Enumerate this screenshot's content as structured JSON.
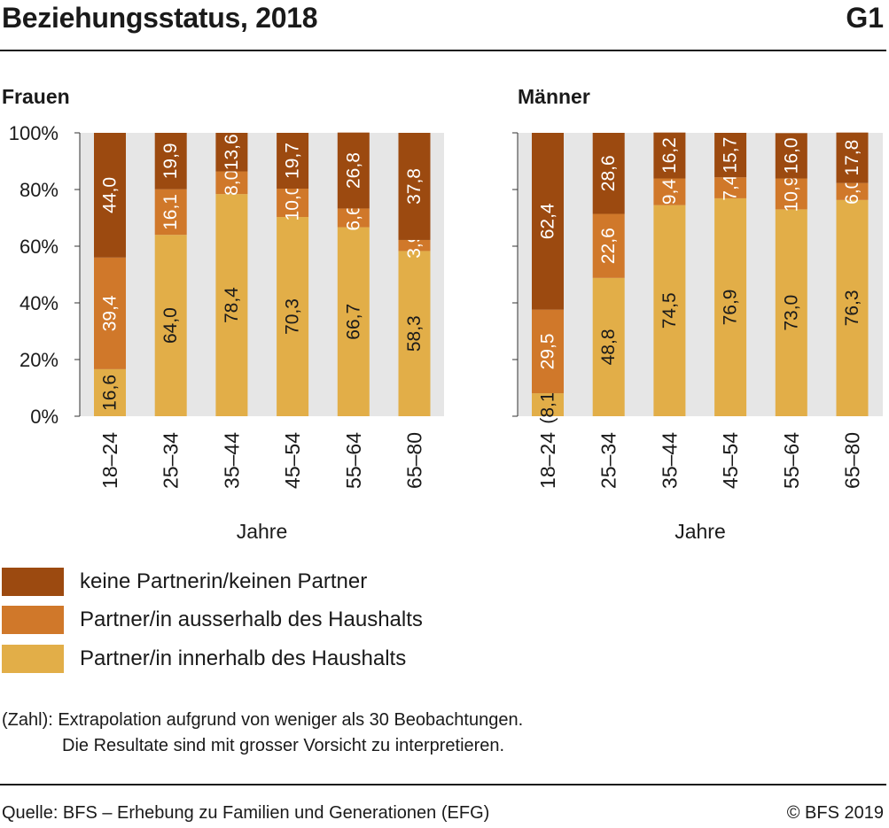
{
  "header": {
    "title": "Beziehungsstatus, 2018",
    "figure_no": "G1"
  },
  "colors": {
    "keine": "#9c4a10",
    "ausserhalb": "#d0782a",
    "innerhalb": "#e2ae48",
    "plot_bg": "#e6e6e6"
  },
  "legend": [
    {
      "label": "keine Partnerin/keinen Partner",
      "color": "#9c4a10"
    },
    {
      "label": "Partner/in ausserhalb des Haushalts",
      "color": "#d0782a"
    },
    {
      "label": "Partner/in innerhalb des Haushalts",
      "color": "#e2ae48"
    }
  ],
  "footnote": {
    "line1": "(Zahl): Extrapolation aufgrund von weniger als 30 Beobachtungen.",
    "line2": "Die Resultate sind mit grosser Vorsicht zu interpretieren."
  },
  "source": "Quelle: BFS – Erhebung zu Familien und Generationen (EFG)",
  "copyright": "© BFS 2019",
  "chart_data": [
    {
      "type": "bar",
      "stacked": true,
      "title": "Frauen",
      "xlabel": "Jahre",
      "ylabel": "",
      "ylim": [
        0,
        100
      ],
      "yticks": [
        "0%",
        "20%",
        "40%",
        "60%",
        "80%",
        "100%"
      ],
      "categories": [
        "18–24",
        "25–34",
        "35–44",
        "45–54",
        "55–64",
        "65–80"
      ],
      "series": [
        {
          "name": "Partner/in innerhalb des Haushalts",
          "values": [
            16.6,
            64.0,
            78.4,
            70.3,
            66.7,
            58.3
          ],
          "labels": [
            "16,6",
            "64,0",
            "78,4",
            "70,3",
            "66,7",
            "58,3"
          ]
        },
        {
          "name": "Partner/in ausserhalb des Haushalts",
          "values": [
            39.4,
            16.1,
            8.0,
            10.0,
            6.6,
            3.9
          ],
          "labels": [
            "39,4",
            "16,1",
            "8,0",
            "10,0",
            "6,6",
            "3,9"
          ]
        },
        {
          "name": "keine Partnerin/keinen Partner",
          "values": [
            44.0,
            19.9,
            13.6,
            19.7,
            26.8,
            37.8
          ],
          "labels": [
            "44,0",
            "19,9",
            "13,6",
            "19,7",
            "26,8",
            "37,8"
          ]
        }
      ]
    },
    {
      "type": "bar",
      "stacked": true,
      "title": "Männer",
      "xlabel": "Jahre",
      "ylabel": "",
      "ylim": [
        0,
        100
      ],
      "categories": [
        "18–24",
        "25–34",
        "35–44",
        "45–54",
        "55–64",
        "65–80"
      ],
      "series": [
        {
          "name": "Partner/in innerhalb des Haushalts",
          "values": [
            8.1,
            48.8,
            74.5,
            76.9,
            73.0,
            76.3
          ],
          "labels": [
            "(8,1)",
            "48,8",
            "74,5",
            "76,9",
            "73,0",
            "76,3"
          ]
        },
        {
          "name": "Partner/in ausserhalb des Haushalts",
          "values": [
            29.5,
            22.6,
            9.4,
            7.4,
            10.9,
            6.0
          ],
          "labels": [
            "29,5",
            "22,6",
            "9,4",
            "7,4",
            "10,9",
            "6,0"
          ]
        },
        {
          "name": "keine Partnerin/keinen Partner",
          "values": [
            62.4,
            28.6,
            16.2,
            15.7,
            16.0,
            17.8
          ],
          "labels": [
            "62,4",
            "28,6",
            "16,2",
            "15,7",
            "16,0",
            "17,8"
          ]
        }
      ]
    }
  ]
}
